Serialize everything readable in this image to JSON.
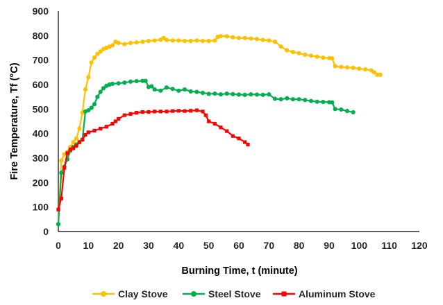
{
  "chart_data": {
    "type": "scatter",
    "xlabel": "Burning Time, t (minute)",
    "ylabel": "Fire Temperature, Tf (°C)",
    "xlim": [
      0,
      120
    ],
    "ylim": [
      0,
      900
    ],
    "xticks": [
      "0",
      "10",
      "20",
      "30",
      "40",
      "50",
      "60",
      "70",
      "80",
      "90",
      "100",
      "110",
      "120"
    ],
    "yticks": [
      "0",
      "100",
      "200",
      "300",
      "400",
      "500",
      "600",
      "700",
      "800",
      "900"
    ],
    "grid": false,
    "legend_position": "bottom",
    "series": [
      {
        "name": "Clay Stove",
        "color": "#FFC000",
        "marker": "circle",
        "x": [
          0,
          1,
          2,
          3,
          4,
          5,
          6,
          7,
          8,
          9,
          10,
          11,
          12,
          13,
          14,
          15,
          16,
          17,
          18,
          19,
          20,
          22,
          24,
          26,
          28,
          30,
          32,
          34,
          35,
          36,
          38,
          40,
          42,
          44,
          46,
          48,
          50,
          52,
          53,
          54,
          56,
          58,
          60,
          62,
          64,
          66,
          68,
          70,
          72,
          74,
          76,
          78,
          80,
          82,
          84,
          86,
          88,
          90,
          91,
          92,
          94,
          96,
          98,
          100,
          102,
          104,
          105,
          106,
          107
        ],
        "y": [
          30,
          290,
          315,
          325,
          345,
          365,
          380,
          420,
          485,
          580,
          630,
          690,
          710,
          725,
          735,
          745,
          750,
          755,
          760,
          775,
          770,
          765,
          770,
          772,
          775,
          778,
          780,
          783,
          790,
          782,
          780,
          780,
          778,
          778,
          780,
          778,
          778,
          780,
          795,
          798,
          797,
          793,
          790,
          790,
          788,
          786,
          782,
          780,
          775,
          755,
          740,
          733,
          728,
          722,
          718,
          714,
          710,
          708,
          707,
          675,
          672,
          670,
          668,
          665,
          662,
          658,
          650,
          640,
          640
        ]
      },
      {
        "name": "Steel Stove",
        "color": "#00B050",
        "marker": "circle",
        "x": [
          0,
          1,
          2,
          3,
          4,
          5,
          6,
          7,
          8,
          9,
          10,
          11,
          12,
          13,
          14,
          15,
          16,
          17,
          18,
          20,
          22,
          24,
          26,
          28,
          29,
          30,
          31,
          32,
          34,
          36,
          38,
          40,
          42,
          44,
          46,
          48,
          50,
          52,
          54,
          56,
          58,
          60,
          62,
          64,
          66,
          68,
          70,
          72,
          74,
          76,
          78,
          80,
          82,
          84,
          86,
          88,
          90,
          91,
          92,
          94,
          96,
          98
        ],
        "y": [
          30,
          240,
          265,
          295,
          330,
          345,
          355,
          365,
          375,
          490,
          495,
          505,
          520,
          550,
          570,
          585,
          595,
          600,
          603,
          605,
          608,
          612,
          614,
          615,
          615,
          590,
          593,
          580,
          575,
          588,
          582,
          575,
          580,
          572,
          570,
          566,
          562,
          563,
          560,
          563,
          561,
          559,
          558,
          560,
          559,
          558,
          560,
          542,
          540,
          544,
          540,
          540,
          537,
          533,
          530,
          529,
          528,
          527,
          500,
          498,
          492,
          487
        ]
      },
      {
        "name": "Aluminum Stove",
        "color": "#FF0000",
        "marker": "square",
        "x": [
          0,
          1,
          2,
          3,
          4,
          5,
          6,
          7,
          8,
          9,
          10,
          12,
          14,
          16,
          18,
          19,
          20,
          22,
          24,
          26,
          28,
          30,
          32,
          34,
          36,
          38,
          40,
          42,
          44,
          46,
          48,
          49,
          50,
          52,
          54,
          56,
          58,
          60,
          62,
          63
        ],
        "y": [
          90,
          135,
          260,
          320,
          335,
          340,
          350,
          365,
          375,
          395,
          405,
          412,
          420,
          428,
          440,
          450,
          460,
          475,
          480,
          485,
          488,
          488,
          490,
          490,
          490,
          492,
          493,
          492,
          493,
          495,
          490,
          475,
          450,
          440,
          425,
          410,
          390,
          380,
          365,
          355
        ]
      }
    ]
  }
}
